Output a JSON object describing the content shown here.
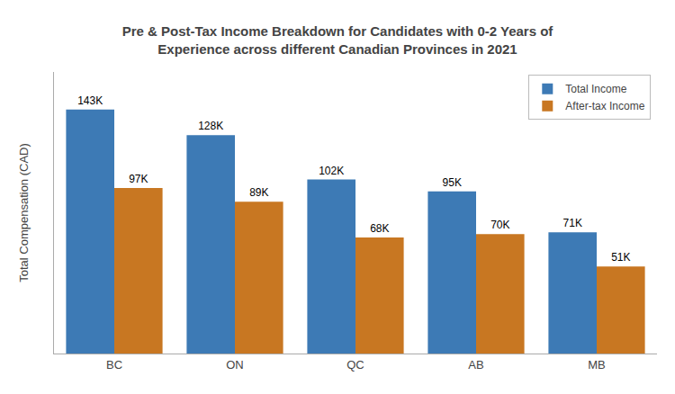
{
  "chart_data": {
    "type": "bar",
    "title": "Pre & Post-Tax Income Breakdown for Candidates with 0-2 Years of\nExperience across different Canadian Provinces in 2021",
    "ylabel": "Total Compensation (CAD)",
    "categories": [
      "BC",
      "ON",
      "QC",
      "AB",
      "MB"
    ],
    "series": [
      {
        "name": "Total Income",
        "color": "#3d7ab5",
        "values": [
          143000,
          128000,
          102000,
          95000,
          71000
        ],
        "value_labels": [
          "143K",
          "128K",
          "102K",
          "95K",
          "71K"
        ]
      },
      {
        "name": "After-tax Income",
        "color": "#c87722",
        "values": [
          97000,
          89000,
          68000,
          70000,
          51000
        ],
        "value_labels": [
          "97K",
          "89K",
          "68K",
          "70K",
          "51K"
        ]
      }
    ],
    "ylim": [
      0,
      165000
    ],
    "grid": false,
    "legend": "upper right",
    "data_labels": true,
    "tick_labels": "x"
  }
}
